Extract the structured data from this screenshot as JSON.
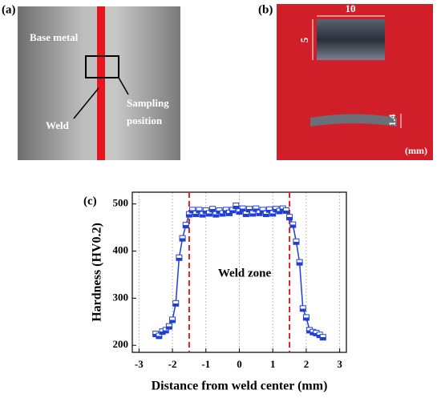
{
  "panel_a": {
    "label": "(a)",
    "base_metal": "Base metal",
    "weld": "Weld",
    "sampling": [
      "Sampling",
      "position"
    ]
  },
  "panel_b": {
    "label": "(b)",
    "width": "10",
    "height": "5",
    "thickness": "1.4",
    "unit": "(mm)"
  },
  "chart_data": {
    "type": "line",
    "label": "(c)",
    "xlabel": "Distance from weld center (mm)",
    "ylabel": "Hardness (HV0.2)",
    "annotation": "Weld zone",
    "x": [
      -2.5,
      -2.4,
      -2.3,
      -2.2,
      -2.1,
      -2.0,
      -1.9,
      -1.8,
      -1.7,
      -1.6,
      -1.5,
      -1.4,
      -1.3,
      -1.2,
      -1.1,
      -1.0,
      -0.9,
      -0.8,
      -0.7,
      -0.6,
      -0.5,
      -0.4,
      -0.3,
      -0.2,
      -0.1,
      0,
      0.1,
      0.2,
      0.3,
      0.4,
      0.5,
      0.6,
      0.7,
      0.8,
      0.9,
      1.0,
      1.1,
      1.2,
      1.3,
      1.4,
      1.5,
      1.6,
      1.7,
      1.8,
      1.9,
      2.0,
      2.1,
      2.2,
      2.3,
      2.4,
      2.5
    ],
    "series": [
      {
        "color": "#1f3fd6",
        "values": [
          224,
          220,
          229,
          232,
          240,
          254,
          289,
          386,
          427,
          455,
          478,
          487,
          479,
          487,
          478,
          486,
          480,
          489,
          478,
          486,
          480,
          487,
          481,
          487,
          496,
          484,
          490,
          479,
          489,
          480,
          490,
          481,
          487,
          479,
          488,
          480,
          489,
          485,
          490,
          486,
          472,
          456,
          420,
          376,
          278,
          259,
          232,
          228,
          226,
          222,
          217
        ]
      }
    ],
    "vlines": {
      "color": "#e02020",
      "values": [
        -1.5,
        1.5
      ]
    },
    "xlim": [
      -3.2,
      3.2
    ],
    "xticks": [
      -3,
      -2,
      -1,
      0,
      1,
      2,
      3
    ],
    "ylim": [
      185,
      525
    ],
    "yticks": [
      200,
      300,
      400,
      500
    ],
    "grid": true
  }
}
